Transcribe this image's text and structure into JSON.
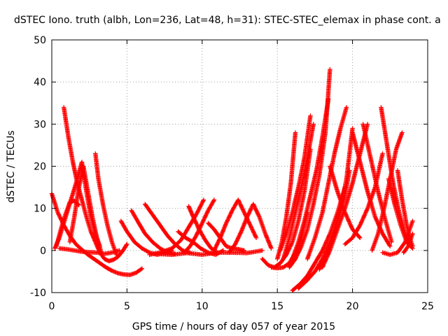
{
  "chart_data": {
    "type": "scatter",
    "title": "dSTEC Iono. truth (albh, Lon=236, Lat=48, h=31): STEC-STEC_elemax in phase cont. a",
    "xlabel": "GPS time / hours of day 057 of year 2015",
    "ylabel": "dSTEC  / TECUs",
    "xlim": [
      0,
      25
    ],
    "ylim": [
      -10,
      50
    ],
    "xticks": [
      0,
      5,
      10,
      15,
      20,
      25
    ],
    "yticks": [
      -10,
      0,
      10,
      20,
      30,
      40,
      50
    ],
    "xtick_labels": [
      "0",
      "5",
      "10",
      "15",
      "20",
      "25"
    ],
    "ytick_labels": [
      "-10",
      "0",
      "10",
      "20",
      "30",
      "40",
      "50"
    ],
    "grid": true,
    "marker": "+",
    "color": "#ff0000",
    "series": [
      {
        "x": [
          0.0,
          0.4,
          0.8,
          1.2,
          1.6,
          2.0,
          2.4,
          2.8,
          3.2,
          3.6,
          4.0,
          4.4,
          4.8,
          5.2,
          5.6,
          6.0
        ],
        "y": [
          13.5,
          9,
          6,
          3.5,
          1.5,
          0.2,
          -1,
          -2,
          -3,
          -4,
          -4.8,
          -5.4,
          -5.7,
          -5.8,
          -5.3,
          -4.3
        ]
      },
      {
        "x": [
          0.8,
          1.1,
          1.4,
          1.7,
          2.0,
          2.3,
          2.6,
          2.9,
          3.2,
          3.5,
          3.8,
          4.1,
          4.4,
          4.7,
          5.0
        ],
        "y": [
          34,
          27,
          21,
          16,
          12,
          8,
          4.5,
          2,
          -0.5,
          -2,
          -2.5,
          -2.2,
          -1.5,
          -0.2,
          1.5
        ]
      },
      {
        "x": [
          0.2,
          0.5,
          0.8,
          1.1,
          1.4,
          1.7,
          2.0,
          2.3,
          2.6,
          2.9,
          3.2
        ],
        "y": [
          0.5,
          3,
          6.5,
          10,
          13.5,
          17,
          21,
          14,
          8,
          4,
          1
        ]
      },
      {
        "x": [
          0.3,
          0.6,
          0.9,
          1.2,
          1.5,
          1.8
        ],
        "y": [
          1,
          5,
          8.5,
          11.5,
          11.8,
          10.8
        ]
      },
      {
        "x": [
          0.5,
          1.0,
          1.5,
          2.0,
          2.5,
          3.0,
          3.5,
          4.0,
          4.5
        ],
        "y": [
          0.5,
          0.3,
          0,
          -0.3,
          -0.4,
          -0.5,
          -0.8,
          -0.5,
          0
        ]
      },
      {
        "x": [
          1.2,
          1.5,
          1.8,
          2.1,
          2.4,
          2.7,
          3.0,
          3.3
        ],
        "y": [
          2,
          8,
          15,
          20,
          14,
          8,
          3,
          -0.5
        ]
      },
      {
        "x": [
          2.9,
          3.1,
          3.4,
          3.7,
          4.0,
          4.3
        ],
        "y": [
          23,
          17,
          11,
          6,
          2,
          -1
        ]
      },
      {
        "x": [
          4.6,
          5.0,
          5.5,
          6.0,
          6.5,
          7.0,
          7.5,
          8.0
        ],
        "y": [
          7,
          4.5,
          2,
          0.5,
          -0.5,
          -1,
          -0.6,
          0
        ]
      },
      {
        "x": [
          5.3,
          5.7,
          6.2,
          6.7,
          7.2,
          7.7,
          8.2
        ],
        "y": [
          9.5,
          7,
          4,
          2,
          0.5,
          -0.5,
          -0.8
        ]
      },
      {
        "x": [
          6.2,
          6.7,
          7.2,
          7.7,
          8.2,
          8.7,
          9.2
        ],
        "y": [
          11,
          8.5,
          6,
          3.5,
          1.5,
          0,
          -0.5
        ]
      },
      {
        "x": [
          6.5,
          7.2,
          8.0,
          8.6,
          9.1,
          9.6,
          10.1
        ],
        "y": [
          -1,
          -0.5,
          0.5,
          2.5,
          5.5,
          8.5,
          12
        ]
      },
      {
        "x": [
          8.4,
          8.9,
          9.4,
          9.9,
          10.4,
          10.9,
          11.4
        ],
        "y": [
          4.5,
          3,
          2,
          0.5,
          -0.5,
          -1,
          0
        ]
      },
      {
        "x": [
          8.8,
          9.2,
          9.6,
          10.0,
          10.4,
          10.8
        ],
        "y": [
          -0.5,
          1,
          3.5,
          6.5,
          9.5,
          12
        ]
      },
      {
        "x": [
          9.1,
          9.4,
          9.8,
          10.2,
          10.6,
          11.0
        ],
        "y": [
          10.5,
          8,
          5,
          2.5,
          0.5,
          -0.5
        ]
      },
      {
        "x": [
          10.4,
          10.8,
          11.2,
          11.6,
          12.0,
          12.4,
          12.8
        ],
        "y": [
          6.5,
          5,
          3,
          1,
          0.5,
          0.3,
          0
        ]
      },
      {
        "x": [
          10.8,
          11.2,
          11.6,
          12.0,
          12.4,
          12.8,
          13.2,
          13.6
        ],
        "y": [
          0,
          3,
          6.5,
          9.5,
          12,
          9,
          6,
          3
        ]
      },
      {
        "x": [
          11.8,
          12.2,
          12.6,
          13.0,
          13.4,
          13.8,
          14.2,
          14.6
        ],
        "y": [
          -0.5,
          1.5,
          4.5,
          8,
          11,
          8,
          4,
          0.5
        ]
      },
      {
        "x": [
          7.0,
          8.0,
          9.0,
          10.0,
          11.0,
          12.0,
          13.0,
          14.0
        ],
        "y": [
          -0.8,
          -1,
          -0.6,
          -1,
          -0.5,
          -0.5,
          -0.6,
          0
        ]
      },
      {
        "x": [
          14.0,
          14.4,
          14.8,
          15.2,
          15.6,
          16.0,
          16.4,
          16.8,
          17.2
        ],
        "y": [
          -2,
          -3.5,
          -4,
          -3,
          -1,
          2,
          7,
          14,
          24
        ]
      },
      {
        "x": [
          14.6,
          15.0,
          15.4,
          15.8,
          16.2,
          16.6,
          17.0
        ],
        "y": [
          -4,
          -4.2,
          -4,
          -3,
          -0.5,
          3,
          9
        ]
      },
      {
        "x": [
          15.0,
          15.3,
          15.6,
          15.9,
          16.2
        ],
        "y": [
          -2,
          2,
          8,
          16,
          28
        ]
      },
      {
        "x": [
          15.2,
          15.6,
          16.0,
          16.4,
          16.8,
          17.2
        ],
        "y": [
          0,
          4,
          9,
          15,
          22,
          32
        ]
      },
      {
        "x": [
          15.4,
          15.8,
          16.2,
          16.6,
          17.0,
          17.4
        ],
        "y": [
          -2,
          3,
          9,
          15,
          22,
          30
        ]
      },
      {
        "x": [
          16.0,
          16.4,
          16.8,
          17.2,
          17.6,
          18.0,
          18.4
        ],
        "y": [
          -2,
          2,
          7,
          13,
          19,
          27,
          36
        ]
      },
      {
        "x": [
          15.8,
          16.2,
          16.6,
          17.0,
          17.4,
          17.8,
          18.2,
          18.5
        ],
        "y": [
          -4,
          -2,
          1,
          5,
          11,
          18,
          28,
          43
        ]
      },
      {
        "x": [
          16.0,
          16.5,
          17.0,
          17.5,
          18.0,
          18.5,
          19.0,
          19.5
        ],
        "y": [
          -9.5,
          -8,
          -6,
          -3,
          0,
          4,
          9,
          15
        ]
      },
      {
        "x": [
          16.4,
          17.0,
          17.5,
          18.0,
          18.5,
          19.0,
          19.5,
          19.8
        ],
        "y": [
          -9,
          -7,
          -5,
          -2,
          2,
          7,
          13,
          19
        ]
      },
      {
        "x": [
          17.0,
          17.5,
          18.0,
          18.4,
          18.8,
          19.2,
          19.6
        ],
        "y": [
          -2,
          3,
          9,
          16,
          23,
          29,
          34
        ]
      },
      {
        "x": [
          17.8,
          18.3,
          18.8,
          19.2,
          19.6,
          20.0
        ],
        "y": [
          -4.5,
          -1,
          4,
          10,
          17,
          29
        ]
      },
      {
        "x": [
          18.0,
          18.5,
          19.0,
          19.5,
          20.0,
          20.5,
          21.0
        ],
        "y": [
          -4,
          0,
          5,
          10,
          16,
          23,
          30
        ]
      },
      {
        "x": [
          18.5,
          19.0,
          19.5,
          20.0,
          20.5
        ],
        "y": [
          20,
          14,
          9,
          5,
          3
        ]
      },
      {
        "x": [
          19.5,
          20.0,
          20.5,
          21.0,
          21.5,
          22.0
        ],
        "y": [
          1.5,
          3,
          6,
          10,
          15,
          23
        ]
      },
      {
        "x": [
          20.0,
          20.5,
          21.0,
          21.5,
          22.0,
          22.5
        ],
        "y": [
          28,
          21,
          14,
          8,
          4,
          1
        ]
      },
      {
        "x": [
          20.7,
          21.2,
          21.7,
          22.2,
          22.6
        ],
        "y": [
          30,
          22,
          14,
          7,
          2
        ]
      },
      {
        "x": [
          21.3,
          21.7,
          22.1,
          22.5,
          22.9,
          23.3
        ],
        "y": [
          0,
          4,
          10,
          17,
          24,
          28
        ]
      },
      {
        "x": [
          21.9,
          22.3,
          22.7,
          23.1,
          23.5,
          23.9
        ],
        "y": [
          34,
          25,
          16,
          9,
          4,
          1
        ]
      },
      {
        "x": [
          22.4,
          22.8,
          23.2,
          23.6,
          24.0
        ],
        "y": [
          17,
          11,
          6,
          2,
          0.5
        ]
      },
      {
        "x": [
          23.0,
          23.3,
          23.6,
          23.9,
          24.0
        ],
        "y": [
          19,
          12,
          6,
          2,
          1
        ]
      },
      {
        "x": [
          22.0,
          22.5,
          23.0,
          23.5,
          24.0
        ],
        "y": [
          -0.5,
          -1,
          -0.5,
          2,
          7
        ]
      },
      {
        "x": [
          23.4,
          23.7,
          24.0
        ],
        "y": [
          -0.5,
          1,
          4
        ]
      }
    ]
  }
}
